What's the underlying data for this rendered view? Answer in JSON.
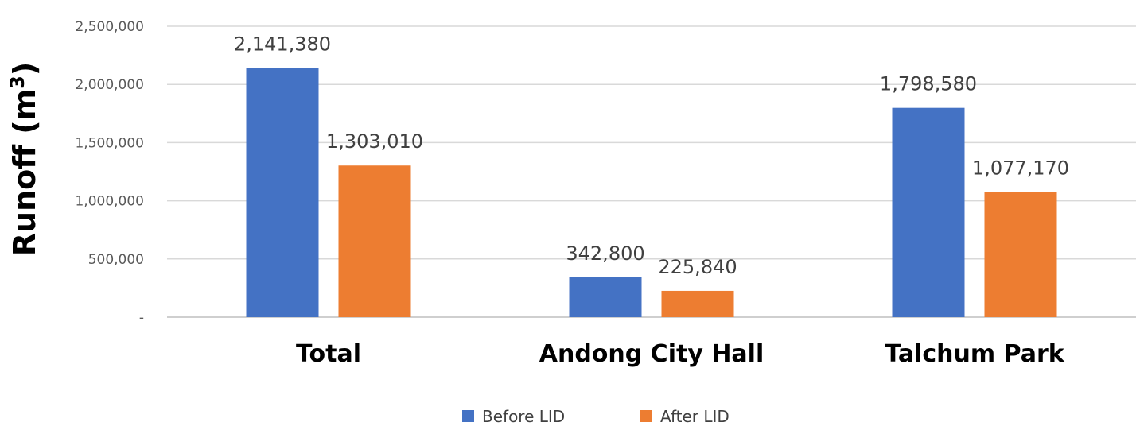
{
  "chart_data": {
    "type": "bar",
    "categories": [
      "Total",
      "Andong City Hall",
      "Talchum Park"
    ],
    "series": [
      {
        "name": "Before LID",
        "values": [
          2141380,
          342800,
          1798580
        ]
      },
      {
        "name": "After LID",
        "values": [
          1303010,
          225840,
          1077170
        ]
      }
    ],
    "data_labels": [
      [
        "2,141,380",
        "342,800",
        "1,798,580"
      ],
      [
        "1,303,010",
        "225,840",
        "1,077,170"
      ]
    ],
    "ylabel_main": "Runoff (m",
    "ylabel_sup": "3",
    "ylabel_close": ")",
    "ylim": [
      0,
      2500000
    ],
    "yticks": [
      0,
      500000,
      1000000,
      1500000,
      2000000,
      2500000
    ],
    "ytick_labels": [
      "-",
      "500,000",
      "1,000,000",
      "1,500,000",
      "2,000,000",
      "2,500,000"
    ],
    "grid": true,
    "legend": "bottom",
    "colors": [
      "#4472c4",
      "#ed7d31"
    ]
  }
}
